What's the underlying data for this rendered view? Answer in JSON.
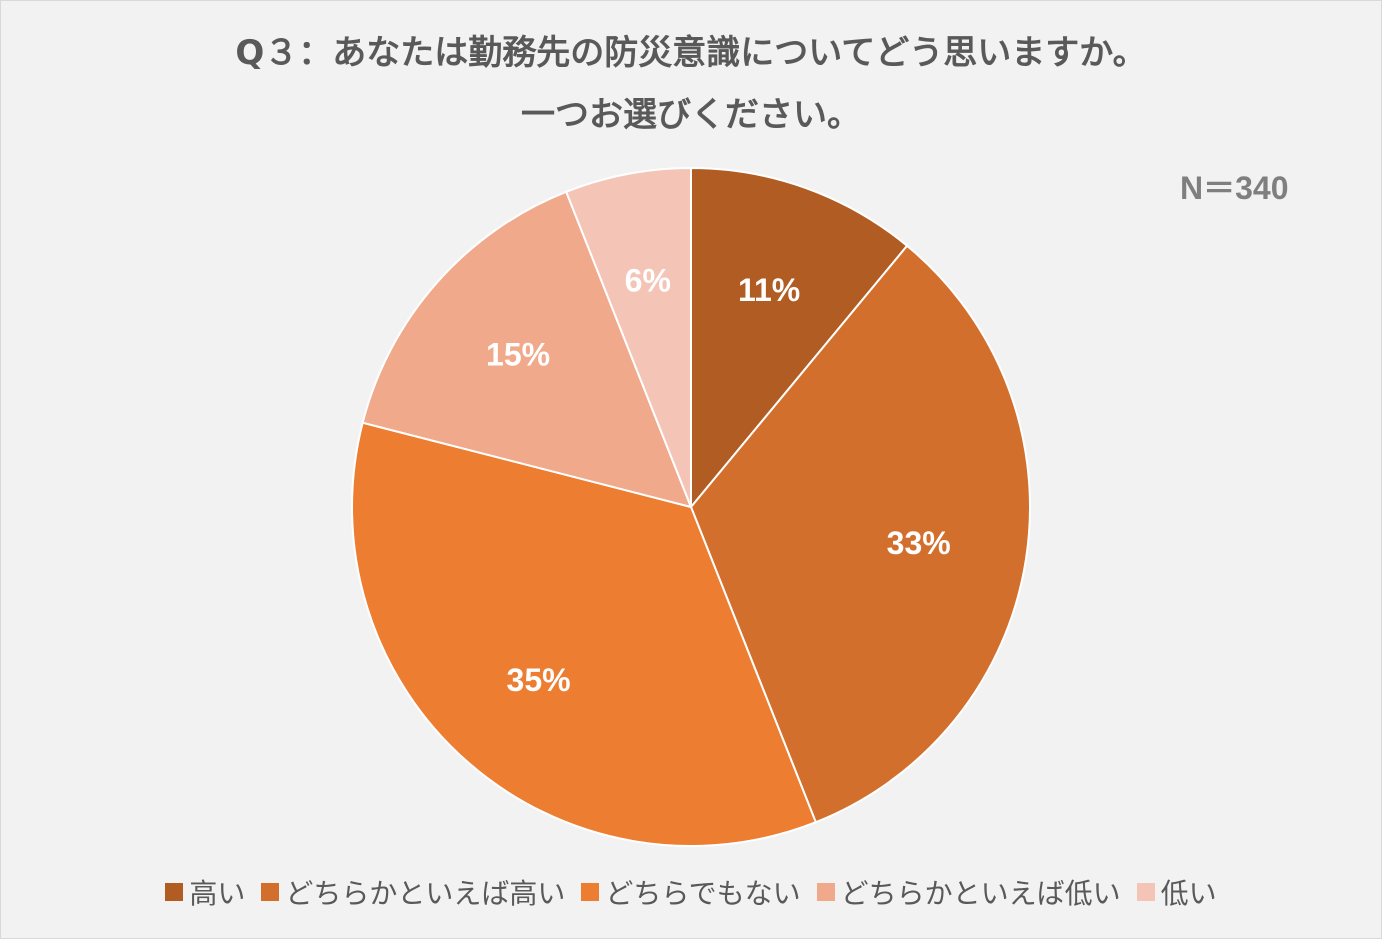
{
  "chart_data": {
    "type": "pie",
    "title_lines": [
      "Q３：あなたは勤務先の防災意識についてどう思いますか。",
      "一つお選びください。"
    ],
    "sample_size_label": "N＝340",
    "categories": [
      "高い",
      "どちらかといえば高い",
      "どちらでもない",
      "どちらかといえば低い",
      "低い"
    ],
    "values": [
      11,
      33,
      35,
      15,
      6
    ],
    "value_labels": [
      "11%",
      "33%",
      "35%",
      "15%",
      "6%"
    ],
    "colors": [
      "#b05c22",
      "#d36f2c",
      "#ed7d31",
      "#f0a98a",
      "#f4c5b7"
    ],
    "start_angle": "12 o'clock",
    "direction": "clockwise",
    "legend_position": "bottom"
  }
}
